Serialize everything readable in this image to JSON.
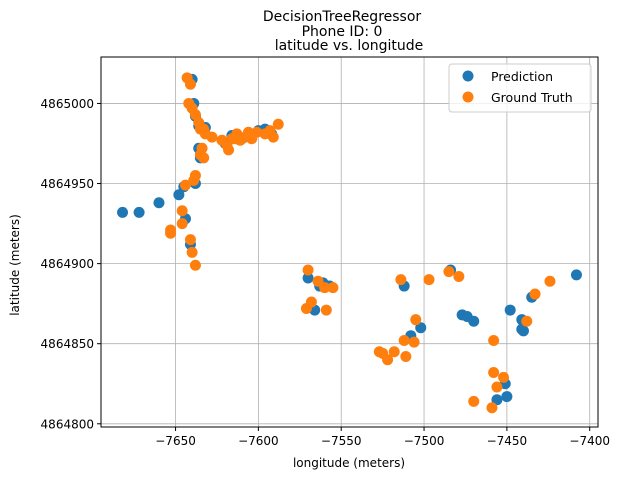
{
  "chart_data": {
    "type": "scatter",
    "title_lines": [
      "DecisionTreeRegressor",
      "Phone ID: 0"
    ],
    "subtitle": "latitude vs. longitude",
    "xlabel": "longitude (meters)",
    "ylabel": "latitude (meters)",
    "xlim": [
      -7695,
      -7395
    ],
    "ylim": [
      4864798,
      4865029
    ],
    "x_ticks": [
      -7650,
      -7600,
      -7550,
      -7500,
      -7450,
      -7400
    ],
    "x_tick_labels": [
      "−7650",
      "−7600",
      "−7550",
      "−7500",
      "−7450",
      "−7400"
    ],
    "y_ticks": [
      4864800,
      4864850,
      4864900,
      4864950,
      4865000
    ],
    "y_tick_labels": [
      "4864800",
      "4864850",
      "4864900",
      "4864950",
      "4865000"
    ],
    "grid": true,
    "legend_position": "upper-right",
    "series": [
      {
        "name": "Prediction",
        "color": "#1f77b4",
        "points": [
          [
            -7682,
            4864932
          ],
          [
            -7672,
            4864932
          ],
          [
            -7660,
            4864938
          ],
          [
            -7648,
            4864943
          ],
          [
            -7645,
            4864948
          ],
          [
            -7644,
            4864928
          ],
          [
            -7641,
            4864912
          ],
          [
            -7638,
            4864950
          ],
          [
            -7640,
            4865015
          ],
          [
            -7639,
            4865000
          ],
          [
            -7638,
            4864992
          ],
          [
            -7636,
            4864986
          ],
          [
            -7635,
            4864966
          ],
          [
            -7636,
            4864972
          ],
          [
            -7632,
            4864985
          ],
          [
            -7620,
            4864975
          ],
          [
            -7616,
            4864980
          ],
          [
            -7610,
            4864978
          ],
          [
            -7605,
            4864981
          ],
          [
            -7600,
            4864983
          ],
          [
            -7596,
            4864984
          ],
          [
            -7592,
            4864981
          ],
          [
            -7570,
            4864891
          ],
          [
            -7566,
            4864871
          ],
          [
            -7563,
            4864886
          ],
          [
            -7561,
            4864888
          ],
          [
            -7557,
            4864886
          ],
          [
            -7512,
            4864886
          ],
          [
            -7508,
            4864855
          ],
          [
            -7502,
            4864860
          ],
          [
            -7484,
            4864896
          ],
          [
            -7477,
            4864868
          ],
          [
            -7474,
            4864867
          ],
          [
            -7470,
            4864864
          ],
          [
            -7451,
            4864825
          ],
          [
            -7450,
            4864817
          ],
          [
            -7456,
            4864815
          ],
          [
            -7448,
            4864871
          ],
          [
            -7441,
            4864859
          ],
          [
            -7441,
            4864865
          ],
          [
            -7440,
            4864858
          ],
          [
            -7435,
            4864879
          ],
          [
            -7408,
            4864893
          ]
        ]
      },
      {
        "name": "Ground Truth",
        "color": "#ff7f0e",
        "points": [
          [
            -7643,
            4865016
          ],
          [
            -7641,
            4865012
          ],
          [
            -7642,
            4865000
          ],
          [
            -7640,
            4864997
          ],
          [
            -7638,
            4864993
          ],
          [
            -7636,
            4864988
          ],
          [
            -7635,
            4864984
          ],
          [
            -7633,
            4864984
          ],
          [
            -7632,
            4864981
          ],
          [
            -7634,
            4864972
          ],
          [
            -7635,
            4864968
          ],
          [
            -7633,
            4864966
          ],
          [
            -7628,
            4864979
          ],
          [
            -7622,
            4864977
          ],
          [
            -7619,
            4864974
          ],
          [
            -7618,
            4864971
          ],
          [
            -7616,
            4864978
          ],
          [
            -7613,
            4864981
          ],
          [
            -7611,
            4864977
          ],
          [
            -7608,
            4864979
          ],
          [
            -7604,
            4864978
          ],
          [
            -7601,
            4864982
          ],
          [
            -7596,
            4864981
          ],
          [
            -7593,
            4864983
          ],
          [
            -7591,
            4864979
          ],
          [
            -7588,
            4864987
          ],
          [
            -7614,
            4864978
          ],
          [
            -7606,
            4864982
          ],
          [
            -7644,
            4864949
          ],
          [
            -7639,
            4864952
          ],
          [
            -7638,
            4864955
          ],
          [
            -7646,
            4864933
          ],
          [
            -7646,
            4864925
          ],
          [
            -7653,
            4864921
          ],
          [
            -7653,
            4864919
          ],
          [
            -7641,
            4864915
          ],
          [
            -7640,
            4864907
          ],
          [
            -7638,
            4864899
          ],
          [
            -7570,
            4864896
          ],
          [
            -7571,
            4864872
          ],
          [
            -7568,
            4864876
          ],
          [
            -7564,
            4864889
          ],
          [
            -7560,
            4864885
          ],
          [
            -7559,
            4864871
          ],
          [
            -7555,
            4864885
          ],
          [
            -7527,
            4864845
          ],
          [
            -7525,
            4864844
          ],
          [
            -7522,
            4864840
          ],
          [
            -7518,
            4864845
          ],
          [
            -7514,
            4864890
          ],
          [
            -7512,
            4864852
          ],
          [
            -7511,
            4864842
          ],
          [
            -7506,
            4864851
          ],
          [
            -7505,
            4864865
          ],
          [
            -7497,
            4864890
          ],
          [
            -7485,
            4864895
          ],
          [
            -7479,
            4864892
          ],
          [
            -7470,
            4864814
          ],
          [
            -7458,
            4864852
          ],
          [
            -7458,
            4864832
          ],
          [
            -7459,
            4864810
          ],
          [
            -7456,
            4864823
          ],
          [
            -7452,
            4864829
          ],
          [
            -7438,
            4864864
          ],
          [
            -7433,
            4864881
          ],
          [
            -7424,
            4864889
          ]
        ]
      }
    ]
  }
}
